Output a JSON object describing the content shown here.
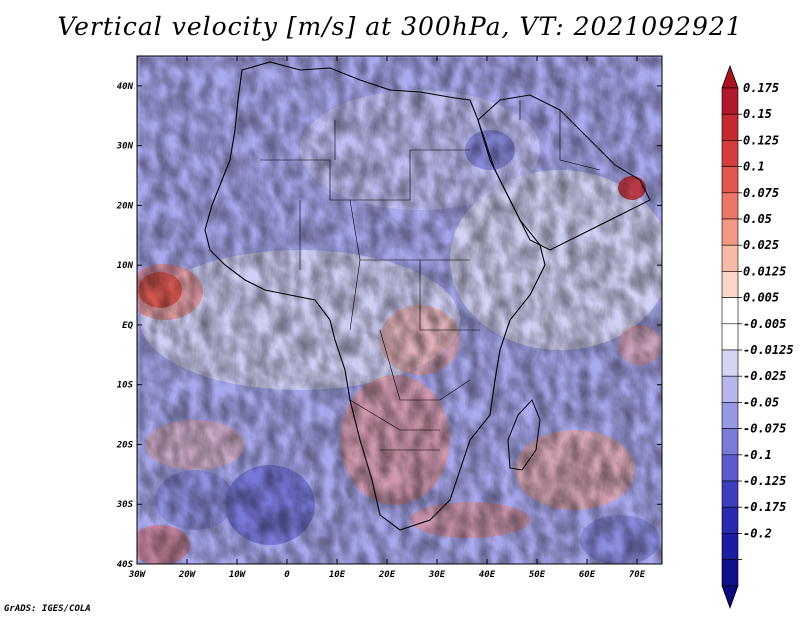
{
  "title": "Vertical velocity [m/s] at 300hPa, VT: 2021092921",
  "credit": "GrADS: IGES/COLA",
  "map": {
    "lon_range": [
      -30,
      75
    ],
    "lat_range": [
      -40,
      45
    ],
    "lat_ticks": [
      "40N",
      "30N",
      "20N",
      "10N",
      "EQ",
      "10S",
      "20S",
      "30S",
      "40S"
    ],
    "lon_ticks": [
      "30W",
      "20W",
      "10W",
      "0",
      "10E",
      "20E",
      "30E",
      "40E",
      "50E",
      "60E",
      "70E"
    ]
  },
  "colorbar": {
    "levels": [
      "0.175",
      "0.15",
      "0.125",
      "0.1",
      "0.075",
      "0.05",
      "0.025",
      "0.0125",
      "0.005",
      "-0.005",
      "-0.0125",
      "-0.025",
      "-0.05",
      "-0.075",
      "-0.1",
      "-0.125",
      "-0.175",
      "-0.2"
    ],
    "colors": [
      "#b2182b",
      "#c62a30",
      "#d63c3c",
      "#e2574f",
      "#ec7667",
      "#f39882",
      "#f8b9a5",
      "#fbd6c8",
      "#ffffff",
      "#ffffff",
      "#d4d4f4",
      "#b6b6ec",
      "#9898e2",
      "#7a7ad8",
      "#5c5ccc",
      "#3e3ebf",
      "#2a2ab0",
      "#1c1ca2",
      "#10108f"
    ],
    "top_arrow_color": "#a8141e",
    "bottom_arrow_color": "#0a0a80"
  }
}
